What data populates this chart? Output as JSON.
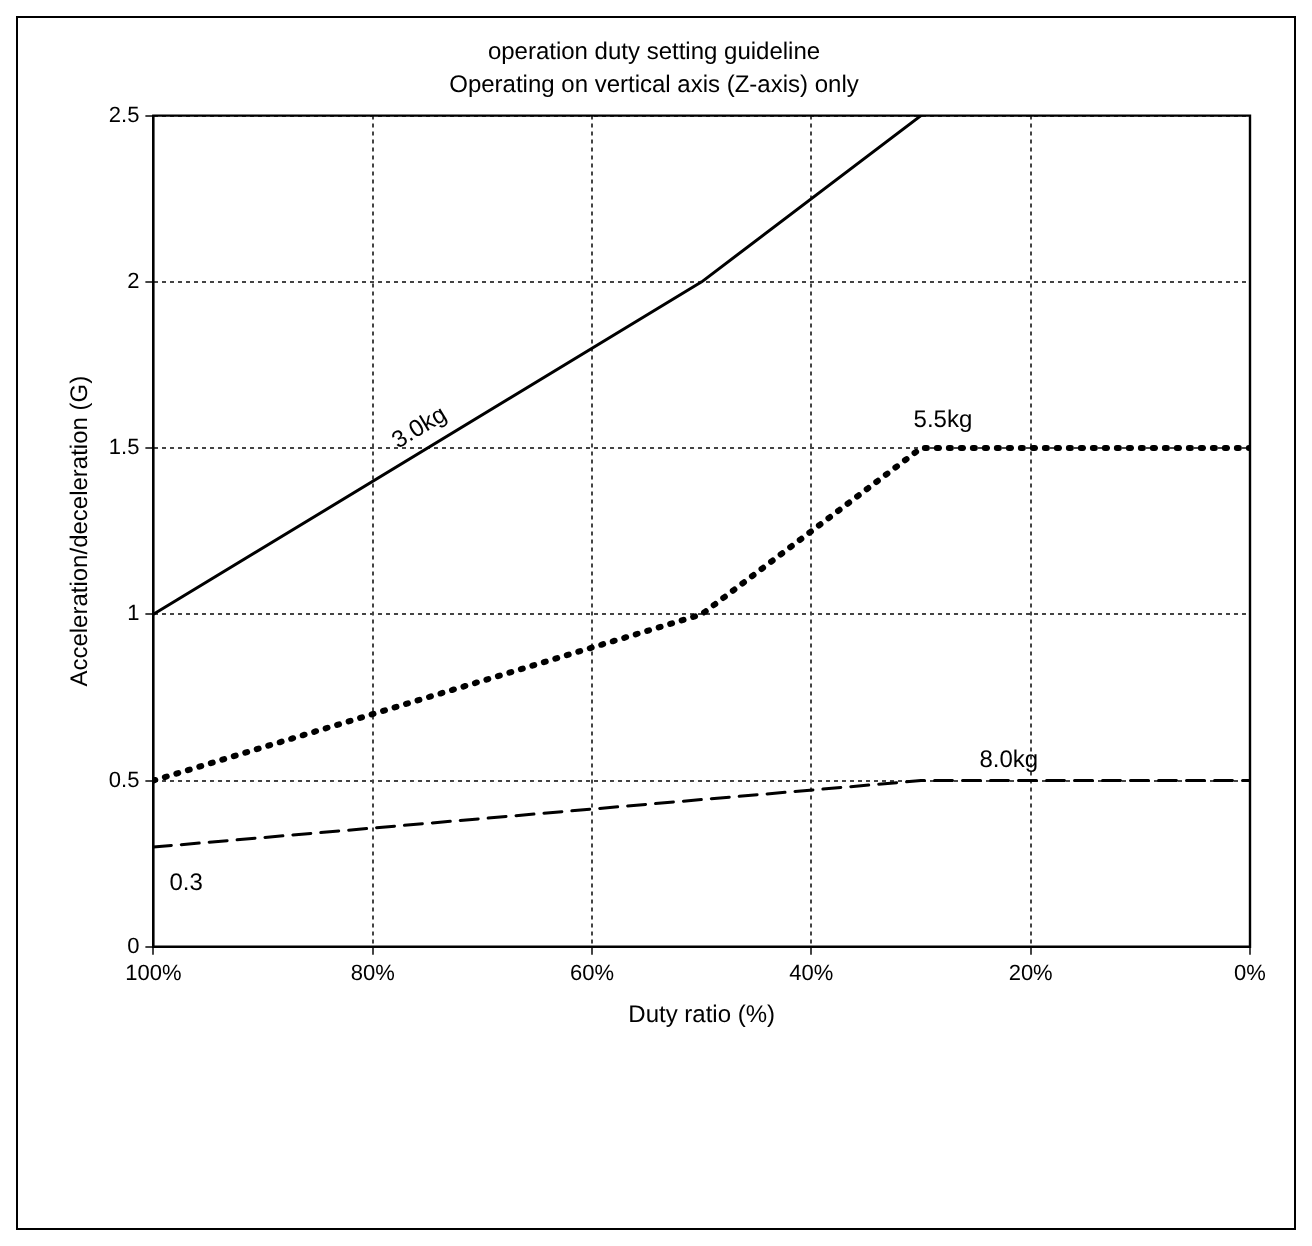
{
  "chart_data": {
    "type": "line",
    "title": "operation duty setting guideline",
    "subtitle": "Operating on vertical axis (Z-axis) only",
    "xlabel": "Duty ratio (%)",
    "ylabel": "Acceleration/deceleration (G)",
    "xlim": [
      100,
      0
    ],
    "xticks": [
      {
        "value": 100,
        "label": "100%"
      },
      {
        "value": 80,
        "label": "80%"
      },
      {
        "value": 60,
        "label": "60%"
      },
      {
        "value": 40,
        "label": "40%"
      },
      {
        "value": 20,
        "label": "20%"
      },
      {
        "value": 0,
        "label": "0%"
      }
    ],
    "ylim": [
      0,
      2.5
    ],
    "yticks": [
      0,
      0.5,
      1,
      1.5,
      2,
      2.5
    ],
    "grid": true,
    "legend": false,
    "marker": "none",
    "series": [
      {
        "name": "3.0kg",
        "color": "#000000",
        "line_style": "solid",
        "x": [
          100,
          50,
          30
        ],
        "values": [
          1.0,
          2.0,
          2.5
        ]
      },
      {
        "name": "5.5kg",
        "color": "#000000",
        "line_style": "dotted",
        "x": [
          100,
          50,
          30,
          0
        ],
        "values": [
          0.5,
          1.0,
          1.5,
          1.5
        ]
      },
      {
        "name": "8.0kg",
        "color": "#000000",
        "line_style": "dashed",
        "x": [
          100,
          30,
          0
        ],
        "values": [
          0.3,
          0.5,
          0.5
        ]
      }
    ],
    "annotations": [
      {
        "text": "0.3",
        "x": 100,
        "y": 0.3
      }
    ]
  }
}
